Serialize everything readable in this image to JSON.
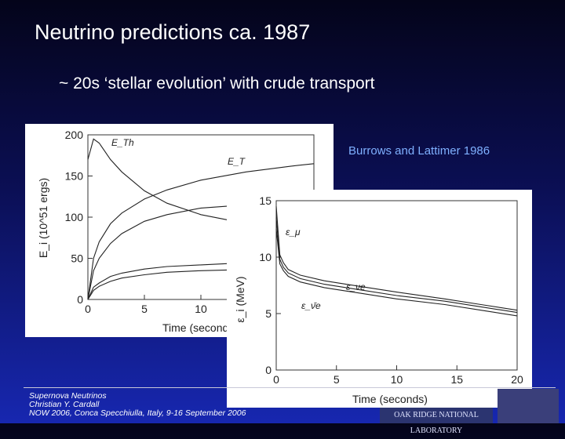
{
  "slide": {
    "title": "Neutrino predictions ca. 1987",
    "bullet": "~ 20s ‘stellar evolution’ with crude transport",
    "credit": "Burrows and Lattimer 1986",
    "footer": {
      "line1": "Supernova Neutrinos",
      "line2": "Christian Y. Cardall",
      "line3": "NOW 2006, Conca Specchiulla, Italy, 9-16 September 2006"
    },
    "logos": {
      "ornl_text": "OAK RIDGE NATIONAL LABORATORY"
    }
  },
  "chart_data": [
    {
      "type": "line",
      "title": "",
      "xlabel": "Time (seconds)",
      "ylabel": "E_i (10^51 ergs)",
      "xlim": [
        0,
        20
      ],
      "ylim": [
        0,
        200
      ],
      "xticks": [
        "0",
        "5",
        "10"
      ],
      "yticks": [
        "0",
        "50",
        "100",
        "150",
        "200"
      ],
      "series": [
        {
          "name": "E_Th",
          "x": [
            0,
            0.5,
            1,
            2,
            3,
            5,
            7,
            10,
            13
          ],
          "y": [
            170,
            195,
            190,
            170,
            155,
            132,
            117,
            103,
            95
          ]
        },
        {
          "name": "E_T",
          "x": [
            0,
            0.5,
            1,
            2,
            3,
            5,
            7,
            10,
            14,
            18,
            20
          ],
          "y": [
            0,
            50,
            70,
            92,
            105,
            122,
            133,
            145,
            155,
            162,
            165
          ]
        },
        {
          "name": "",
          "x": [
            0,
            0.5,
            1,
            2,
            3,
            5,
            7,
            10,
            13
          ],
          "y": [
            0,
            35,
            50,
            68,
            80,
            95,
            103,
            111,
            114
          ]
        },
        {
          "name": "",
          "x": [
            0,
            0.5,
            1,
            2,
            3,
            5,
            7,
            10,
            13
          ],
          "y": [
            0,
            15,
            20,
            28,
            32,
            37,
            40,
            42,
            44
          ]
        },
        {
          "name": "",
          "x": [
            0,
            0.5,
            1,
            2,
            3,
            5,
            7,
            10,
            13
          ],
          "y": [
            0,
            11,
            16,
            22,
            26,
            30,
            33,
            35,
            36
          ]
        }
      ]
    },
    {
      "type": "line",
      "title": "",
      "xlabel": "Time (seconds)",
      "ylabel": "ε_i (MeV)",
      "xlim": [
        0,
        20
      ],
      "ylim": [
        0,
        15
      ],
      "xticks": [
        "0",
        "5",
        "10",
        "15",
        "20"
      ],
      "yticks": [
        "0",
        "5",
        "10",
        "15"
      ],
      "series": [
        {
          "name": "ε_μ",
          "x": [
            0,
            0.3,
            0.6,
            1,
            2,
            4,
            7,
            10,
            14,
            17,
            20
          ],
          "y": [
            14.5,
            10.2,
            9.5,
            8.9,
            8.4,
            7.9,
            7.4,
            6.9,
            6.3,
            5.8,
            5.3
          ]
        },
        {
          "name": "ε_νe",
          "x": [
            0,
            0.3,
            0.6,
            1,
            2,
            4,
            7,
            10,
            14,
            17,
            20
          ],
          "y": [
            13.5,
            9.8,
            9.1,
            8.6,
            8.1,
            7.6,
            7.1,
            6.6,
            6.1,
            5.6,
            5.1
          ]
        },
        {
          "name": "ε_ν̄e",
          "x": [
            0,
            0.3,
            0.6,
            1,
            2,
            4,
            7,
            10,
            14,
            17,
            20
          ],
          "y": [
            12.5,
            9.4,
            8.8,
            8.3,
            7.8,
            7.3,
            6.8,
            6.3,
            5.8,
            5.3,
            4.8
          ]
        }
      ]
    }
  ]
}
